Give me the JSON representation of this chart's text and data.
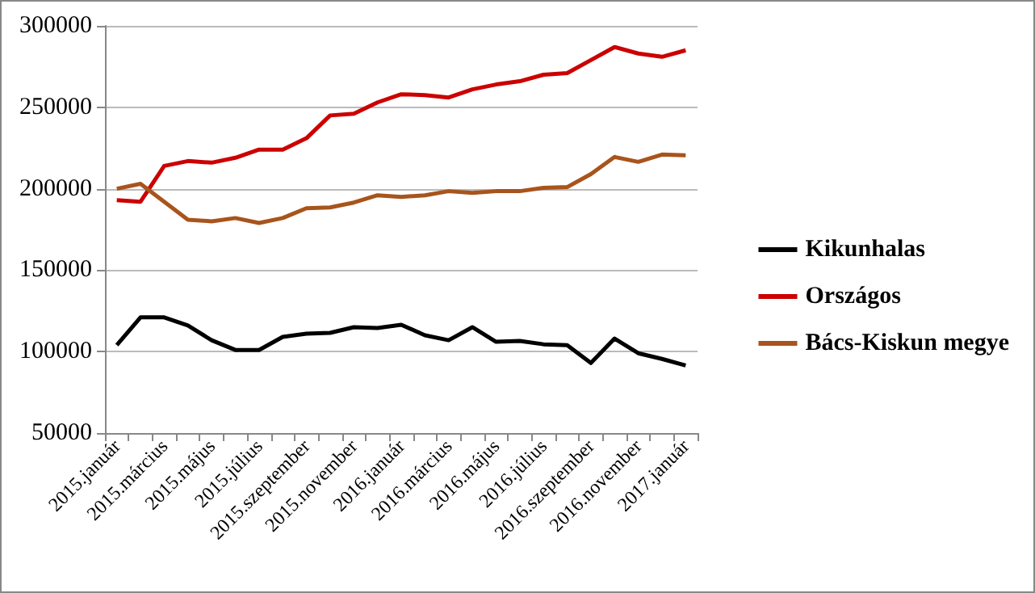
{
  "chart_data": {
    "type": "line",
    "categories": [
      "2015.január",
      null,
      "2015.március",
      null,
      "2015.május",
      null,
      "2015.július",
      null,
      "2015.szeptember",
      null,
      "2015.november",
      null,
      "2016.január",
      null,
      "2016.március",
      null,
      "2016.május",
      null,
      "2016.július",
      null,
      "2016.szeptember",
      null,
      "2016.november",
      null,
      "2017.január"
    ],
    "series": [
      {
        "name": "Kikunhalas",
        "color": "#000000",
        "values": [
          104000,
          121000,
          121000,
          116000,
          107000,
          101000,
          101000,
          109000,
          111000,
          111500,
          115000,
          114500,
          116500,
          110000,
          107000,
          115000,
          106000,
          106500,
          104500,
          104000,
          93000,
          108000,
          99000,
          95500,
          91500
        ]
      },
      {
        "name": "Országos",
        "color": "#cc0000",
        "values": [
          193000,
          192000,
          214000,
          217000,
          216000,
          219000,
          224000,
          224000,
          231000,
          245000,
          246000,
          253000,
          258000,
          257500,
          256000,
          261000,
          264000,
          266000,
          270000,
          271000,
          279000,
          287000,
          283000,
          281000,
          285000
        ]
      },
      {
        "name": "Bács-Kiskun megye",
        "color": "#a8541c",
        "values": [
          200000,
          203000,
          192000,
          181000,
          180000,
          182000,
          179000,
          182000,
          188000,
          188500,
          191500,
          196000,
          195000,
          196000,
          198500,
          197500,
          198500,
          198500,
          200500,
          201000,
          209000,
          219500,
          216500,
          221000,
          220500
        ]
      }
    ],
    "ylim": [
      50000,
      300000
    ],
    "yticks": [
      50000,
      100000,
      150000,
      200000,
      250000,
      300000
    ],
    "grid": "y",
    "legend": "right",
    "marker": "none",
    "line_style": "solid"
  }
}
